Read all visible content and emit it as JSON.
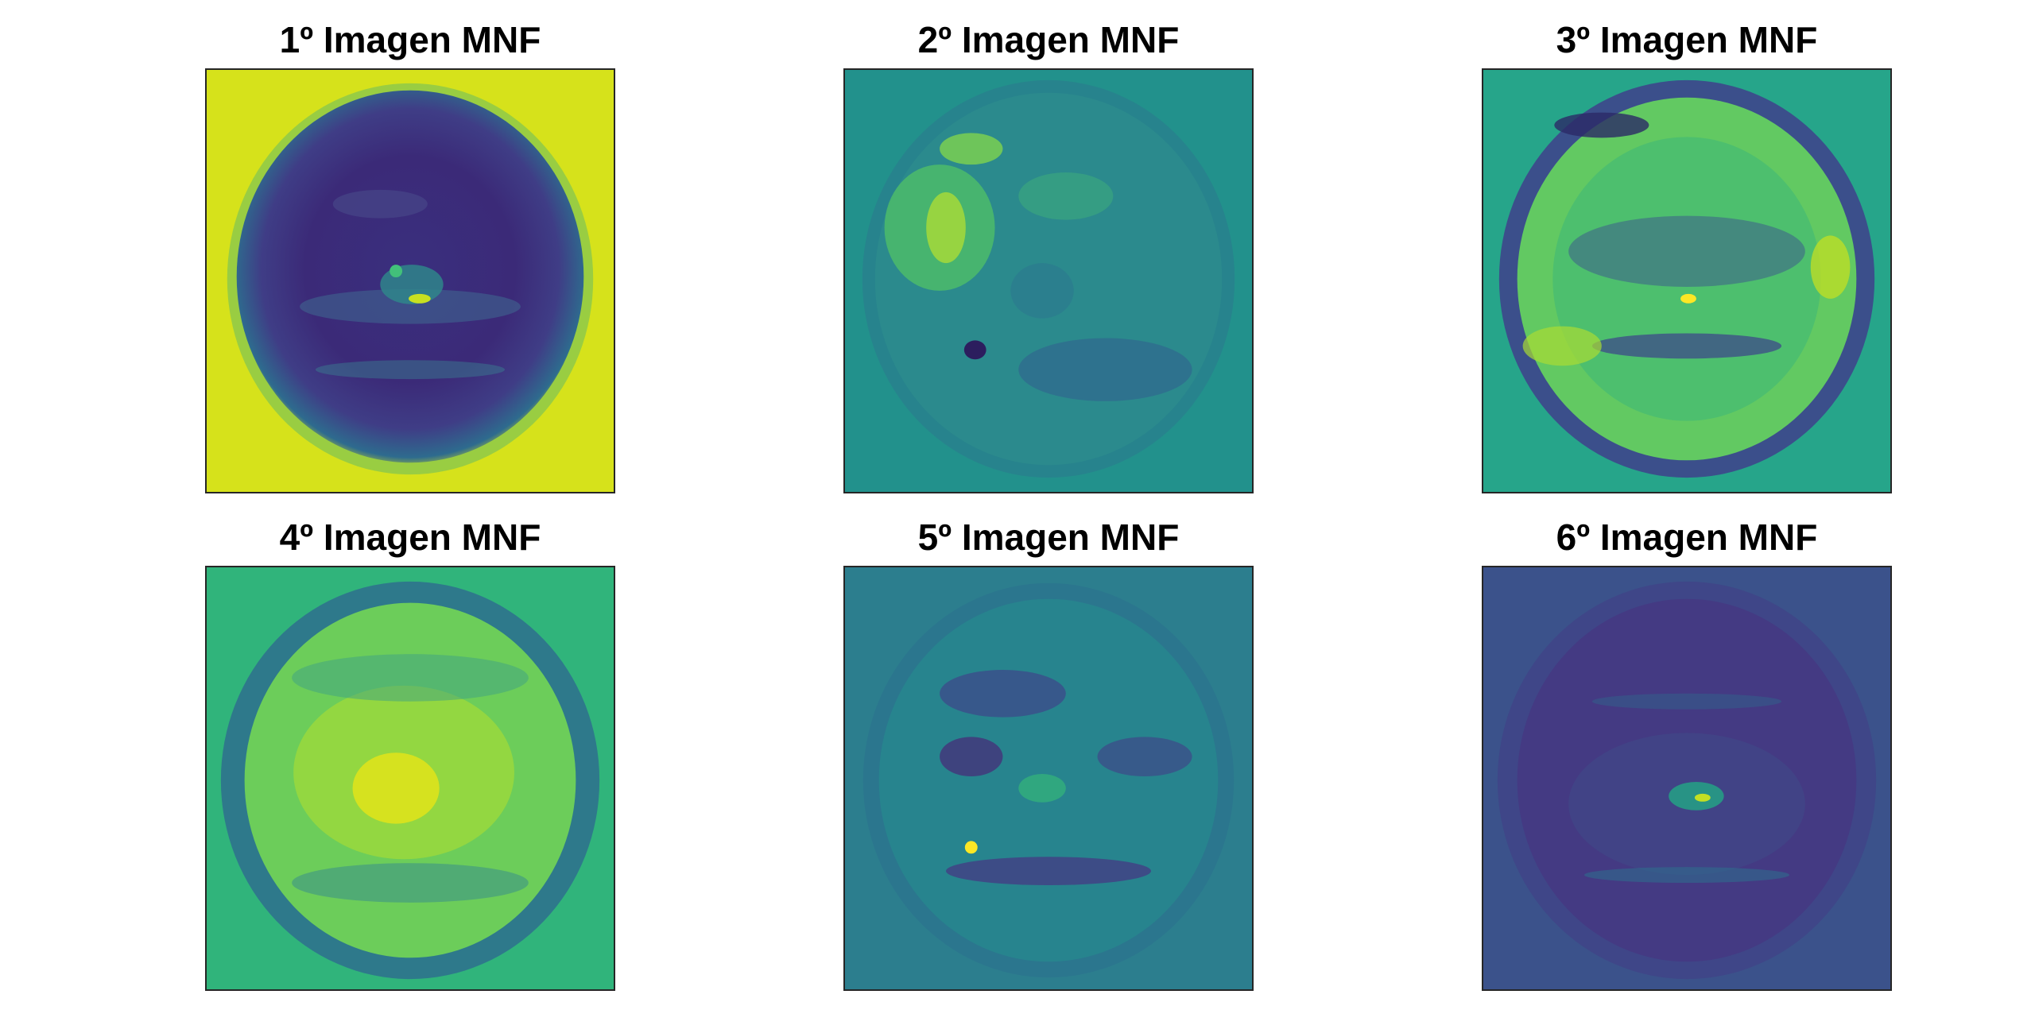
{
  "figure": {
    "panels": [
      {
        "title": "1º Imagen MNF",
        "icon": "mnf-image-1",
        "bg": "#d4e21a",
        "disk": "#3d2b7a",
        "ring": "#2d5d8c",
        "accent": "#42c07a",
        "hot": "#c8e020"
      },
      {
        "title": "2º Imagen MNF",
        "icon": "mnf-image-2",
        "bg": "#21908d",
        "disk": "#2c7f8e",
        "ring": "#31688e",
        "accent": "#5ec962",
        "hot": "#e5e419"
      },
      {
        "title": "3º Imagen MNF",
        "icon": "mnf-image-3",
        "bg": "#25a58a",
        "disk": "#50c46a",
        "ring": "#3b528b",
        "accent": "#8fd744",
        "hot": "#fde725"
      },
      {
        "title": "4º Imagen MNF",
        "icon": "mnf-image-4",
        "bg": "#2fb47c",
        "disk": "#7ad151",
        "ring": "#31688e",
        "accent": "#b5de2b",
        "hot": "#fde725"
      },
      {
        "title": "5º Imagen MNF",
        "icon": "mnf-image-5",
        "bg": "#2c7e8e",
        "disk": "#26828e",
        "ring": "#3e4989",
        "accent": "#35b779",
        "hot": "#fde725"
      },
      {
        "title": "6º Imagen MNF",
        "icon": "mnf-image-6",
        "bg": "#3b528b",
        "disk": "#433e85",
        "ring": "#3e4a89",
        "accent": "#2a788e",
        "hot": "#c2df23"
      }
    ]
  }
}
